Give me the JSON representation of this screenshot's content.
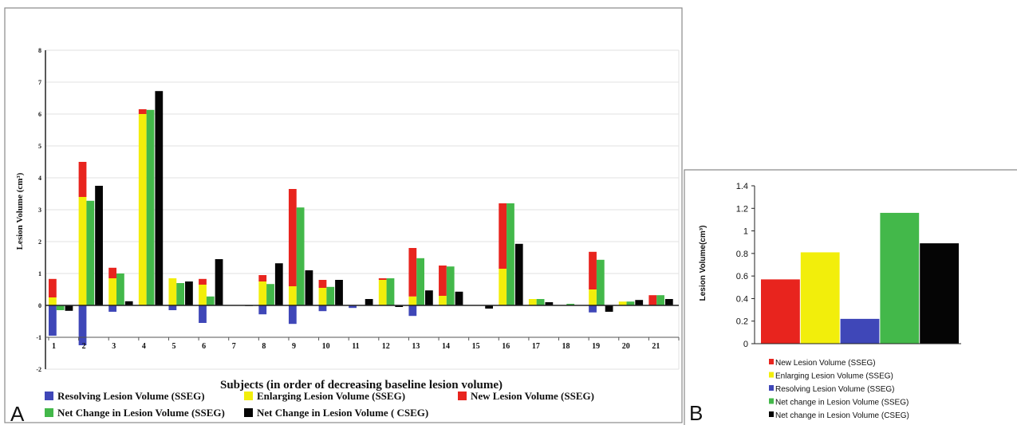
{
  "figure": {
    "panel_a_letter": "A",
    "panel_b_letter": "B"
  },
  "colors": {
    "resolving": "#3f47b8",
    "enlarging": "#f2ee0b",
    "new": "#e8241e",
    "net_sseg": "#43b84a",
    "net_cseg": "#050505"
  },
  "chart_data": [
    {
      "type": "bar",
      "stacked_groups": true,
      "xlabel": "Subjects (in order of decreasing baseline lesion volume)",
      "ylabel": "Lesion Volume (cm³)",
      "ylim": [
        -2,
        8
      ],
      "yticks": [
        -2,
        -1,
        0,
        1,
        2,
        3,
        4,
        5,
        6,
        7,
        8
      ],
      "grid": true,
      "legend_position": "bottom",
      "categories": [
        "1",
        "2",
        "3",
        "4",
        "5",
        "6",
        "7",
        "8",
        "9",
        "10",
        "11",
        "12",
        "13",
        "14",
        "15",
        "16",
        "17",
        "18",
        "19",
        "20",
        "21"
      ],
      "series": [
        {
          "name": "Resolving Lesion Volume (SSEG)",
          "color_key": "resolving",
          "stack": "sseg",
          "values": [
            -0.95,
            -1.25,
            -0.2,
            0,
            -0.15,
            -0.55,
            0,
            -0.28,
            -0.58,
            -0.18,
            -0.08,
            0,
            -0.33,
            0,
            0,
            0,
            0,
            0,
            -0.22,
            0,
            0
          ]
        },
        {
          "name": "Enlarging Lesion Volume (SSEG)",
          "color_key": "enlarging",
          "stack": "sseg",
          "values": [
            0.25,
            3.4,
            0.85,
            6.0,
            0.85,
            0.65,
            0,
            0.75,
            0.6,
            0.55,
            0,
            0.8,
            0.28,
            0.3,
            0,
            1.15,
            0.2,
            0,
            0.5,
            0.12,
            0
          ]
        },
        {
          "name": "New Lesion Volume (SSEG)",
          "color_key": "new",
          "stack": "sseg",
          "values": [
            0.58,
            1.1,
            0.33,
            0.15,
            0,
            0.18,
            0,
            0.2,
            3.05,
            0.25,
            0,
            0.05,
            1.52,
            0.95,
            0,
            2.05,
            0,
            0,
            1.18,
            0,
            0.32
          ]
        },
        {
          "name": "Net Change in Lesion Volume (SSEG)",
          "color_key": "net_sseg",
          "stack": "net",
          "values": [
            -0.15,
            3.28,
            1.0,
            6.13,
            0.7,
            0.28,
            0,
            0.67,
            3.07,
            0.58,
            0,
            0.85,
            1.48,
            1.22,
            0,
            3.2,
            0.2,
            0.05,
            1.43,
            0.12,
            0.32
          ]
        },
        {
          "name": "Net Change in Lesion Volume ( CSEG)",
          "color_key": "net_cseg",
          "stack": "cseg",
          "values": [
            -0.17,
            3.75,
            0.13,
            6.72,
            0.75,
            1.45,
            -0.02,
            1.32,
            1.1,
            0.8,
            0.2,
            -0.05,
            0.47,
            0.43,
            -0.1,
            1.93,
            0.1,
            0,
            -0.2,
            0.17,
            0.2
          ]
        }
      ],
      "legend_entries": [
        {
          "label": "Resolving Lesion Volume (SSEG)",
          "color_key": "resolving"
        },
        {
          "label": "Enlarging Lesion Volume (SSEG)",
          "color_key": "enlarging"
        },
        {
          "label": "New Lesion Volume (SSEG)",
          "color_key": "new"
        },
        {
          "label": "Net Change in Lesion Volume (SSEG)",
          "color_key": "net_sseg"
        },
        {
          "label": "Net Change in Lesion Volume ( CSEG)",
          "color_key": "net_cseg"
        }
      ]
    },
    {
      "type": "bar",
      "ylabel": "Lesion Volume(cm³)",
      "ylim": [
        0,
        1.4
      ],
      "yticks": [
        "0",
        "0.2",
        "0.4",
        "0.6",
        "0.8",
        "1",
        "1.2",
        "1.4"
      ],
      "grid": false,
      "legend_position": "bottom",
      "categories": [
        "New Lesion Volume (SSEG)",
        "Enlarging Lesion Volume (SSEG)",
        "Resolving Lesion Volume (SSEG)",
        "Net change in Lesion Volume (SSEG)",
        "Net change in Lesion Volume (CSEG)"
      ],
      "values": [
        0.57,
        0.81,
        0.22,
        1.16,
        0.89
      ],
      "color_keys": [
        "new",
        "enlarging",
        "resolving",
        "net_sseg",
        "net_cseg"
      ]
    }
  ]
}
